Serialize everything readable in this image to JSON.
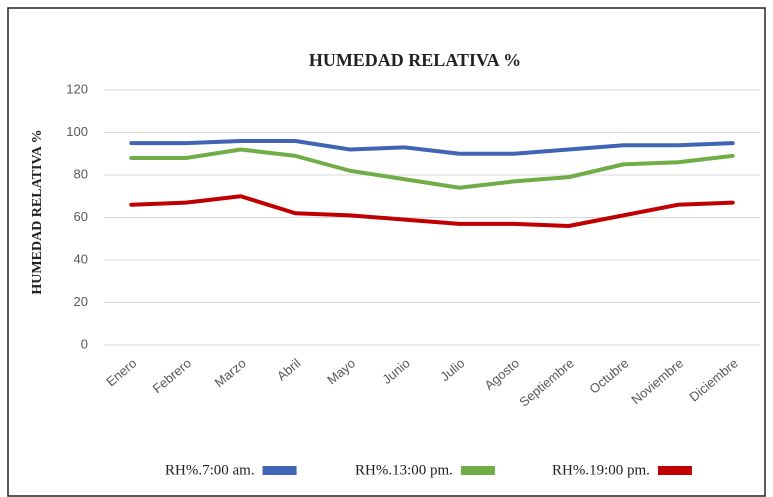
{
  "chart_data": {
    "type": "line",
    "title": "HUMEDAD RELATIVA %",
    "y_label": "HUMEDAD RELATIVA %",
    "categories": [
      "Enero",
      "Febrero",
      "Marzo",
      "Abril",
      "Mayo",
      "Junio",
      "Julio",
      "Agosto",
      "Septiembre",
      "Octubre",
      "Noviembre",
      "Diciembre"
    ],
    "series": [
      {
        "name": "RH%.7:00 am.",
        "color": "#4065b4",
        "values": [
          95,
          95,
          96,
          96,
          92,
          93,
          90,
          90,
          92,
          94,
          94,
          95
        ]
      },
      {
        "name": "RH%.13:00 pm.",
        "color": "#70ad47",
        "values": [
          88,
          88,
          92,
          89,
          82,
          78,
          74,
          77,
          79,
          85,
          86,
          89
        ]
      },
      {
        "name": "RH%.19:00 pm.",
        "color": "#c00000",
        "values": [
          66,
          67,
          70,
          62,
          61,
          59,
          57,
          57,
          56,
          61,
          66,
          67
        ]
      }
    ],
    "ylim": [
      0,
      120
    ],
    "yticks": [
      0,
      20,
      40,
      60,
      80,
      100,
      120
    ],
    "grid": true,
    "legend": "bottom"
  }
}
